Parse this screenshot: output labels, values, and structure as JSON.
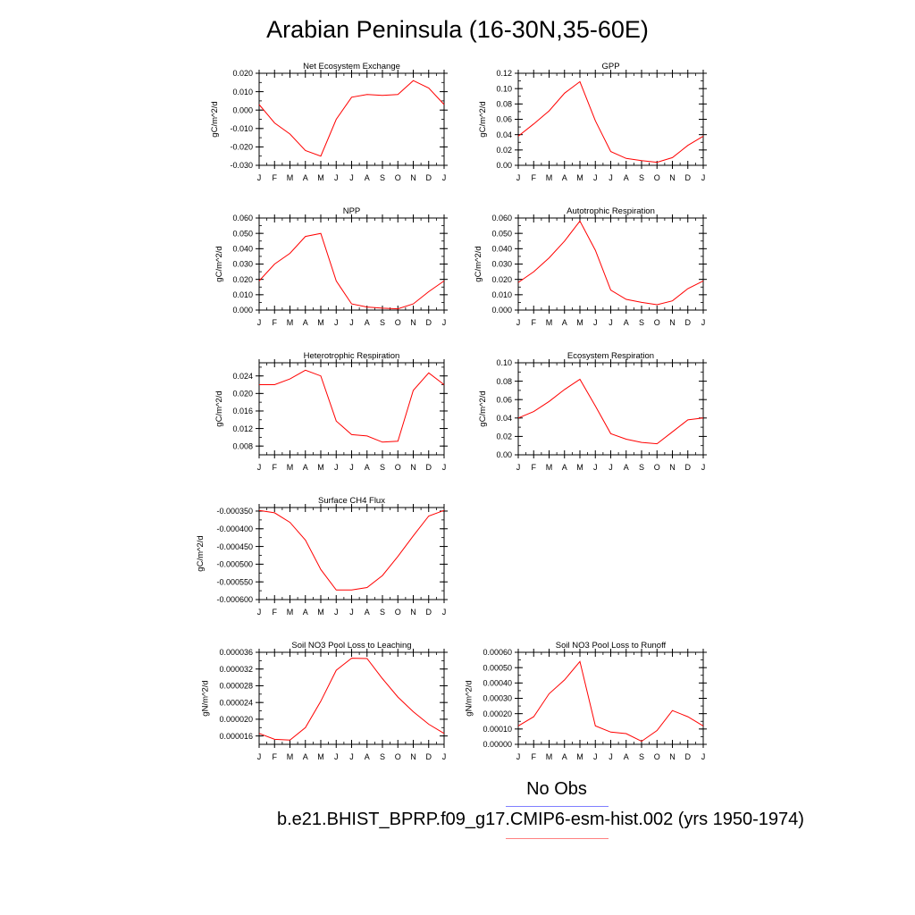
{
  "title": "Arabian Peninsula (16-30N,35-60E)",
  "months": [
    "J",
    "F",
    "M",
    "A",
    "M",
    "J",
    "J",
    "A",
    "S",
    "O",
    "N",
    "D",
    "J"
  ],
  "colors": {
    "model": "#ff0000",
    "obs": "#8080ff",
    "model_legend": "#ff8080"
  },
  "legend": {
    "obs_label": "No Obs",
    "model_label": "b.e21.BHIST_BPRP.f09_g17.CMIP6-esm-hist.002 (yrs 1950-1974)"
  },
  "chart_data": [
    {
      "type": "line",
      "title": "Net Ecosystem Exchange",
      "ylabel": "gC/m^2/d",
      "ylim": [
        -0.03,
        0.02
      ],
      "yticks": [
        -0.03,
        -0.02,
        -0.01,
        0.0,
        0.01,
        0.02
      ],
      "yticklabels": [
        "-0.030",
        "-0.020",
        "-0.010",
        "0.000",
        "0.010",
        "0.020"
      ],
      "values": [
        0.003,
        -0.007,
        -0.013,
        -0.022,
        -0.025,
        -0.005,
        0.007,
        0.0085,
        0.008,
        0.0085,
        0.016,
        0.012,
        0.003
      ]
    },
    {
      "type": "line",
      "title": "GPP",
      "ylabel": "gC/m^2/d",
      "ylim": [
        0.0,
        0.12
      ],
      "yticks": [
        0.0,
        0.02,
        0.04,
        0.06,
        0.08,
        0.1,
        0.12
      ],
      "yticklabels": [
        "0.00",
        "0.02",
        "0.04",
        "0.06",
        "0.08",
        "0.10",
        "0.12"
      ],
      "values": [
        0.038,
        0.054,
        0.071,
        0.094,
        0.109,
        0.058,
        0.018,
        0.009,
        0.006,
        0.004,
        0.01,
        0.026,
        0.038
      ]
    },
    {
      "type": "line",
      "title": "NPP",
      "ylabel": "gC/m^2/d",
      "ylim": [
        0.0,
        0.06
      ],
      "yticks": [
        0.0,
        0.01,
        0.02,
        0.03,
        0.04,
        0.05,
        0.06
      ],
      "yticklabels": [
        "0.000",
        "0.010",
        "0.020",
        "0.030",
        "0.040",
        "0.050",
        "0.060"
      ],
      "values": [
        0.019,
        0.03,
        0.037,
        0.048,
        0.05,
        0.019,
        0.004,
        0.002,
        0.0012,
        0.0008,
        0.004,
        0.012,
        0.019
      ]
    },
    {
      "type": "line",
      "title": "Autotrophic Respiration",
      "ylabel": "gC/m^2/d",
      "ylim": [
        0.0,
        0.06
      ],
      "yticks": [
        0.0,
        0.01,
        0.02,
        0.03,
        0.04,
        0.05,
        0.06
      ],
      "yticklabels": [
        "0.000",
        "0.010",
        "0.020",
        "0.030",
        "0.040",
        "0.050",
        "0.060"
      ],
      "values": [
        0.018,
        0.025,
        0.034,
        0.045,
        0.058,
        0.039,
        0.013,
        0.007,
        0.005,
        0.0035,
        0.006,
        0.014,
        0.019
      ]
    },
    {
      "type": "line",
      "title": "Heterotrophic Respiration",
      "ylabel": "gC/m^2/d",
      "ylim": [
        0.006,
        0.027
      ],
      "yticks": [
        0.008,
        0.012,
        0.016,
        0.02,
        0.024
      ],
      "yticklabels": [
        "0.008",
        "0.012",
        "0.016",
        "0.020",
        "0.024"
      ],
      "values": [
        0.022,
        0.022,
        0.0233,
        0.0253,
        0.024,
        0.0137,
        0.0106,
        0.0103,
        0.0089,
        0.0091,
        0.0207,
        0.0247,
        0.022
      ]
    },
    {
      "type": "line",
      "title": "Ecosystem Respiration",
      "ylabel": "gC/m^2/d",
      "ylim": [
        0.0,
        0.1
      ],
      "yticks": [
        0.0,
        0.02,
        0.04,
        0.06,
        0.08,
        0.1
      ],
      "yticklabels": [
        "0.00",
        "0.02",
        "0.04",
        "0.06",
        "0.08",
        "0.10"
      ],
      "values": [
        0.04,
        0.047,
        0.058,
        0.071,
        0.082,
        0.053,
        0.023,
        0.017,
        0.0135,
        0.012,
        0.025,
        0.038,
        0.04
      ]
    },
    {
      "type": "line",
      "title": "Surface CH4 Flux",
      "ylabel": "gC/m^2/d",
      "ylim": [
        -0.0006,
        -0.00034
      ],
      "yticks": [
        -0.0006,
        -0.00055,
        -0.0005,
        -0.00045,
        -0.0004,
        -0.00035
      ],
      "yticklabels": [
        "-0.000600",
        "-0.000550",
        "-0.000500",
        "-0.000450",
        "-0.000400",
        "-0.000350"
      ],
      "values": [
        -0.000348,
        -0.000355,
        -0.000382,
        -0.000432,
        -0.000515,
        -0.000573,
        -0.000573,
        -0.000566,
        -0.000532,
        -0.000478,
        -0.00042,
        -0.000364,
        -0.000348
      ]
    },
    {
      "type": "line",
      "title": "Soil NO3 Pool Loss to Leaching",
      "ylabel": "gN/m^2/d",
      "ylim": [
        1.4e-05,
        3.6e-05
      ],
      "yticks": [
        1.6e-05,
        2e-05,
        2.4e-05,
        2.8e-05,
        3.2e-05,
        3.6e-05
      ],
      "yticklabels": [
        "0.000016",
        "0.000020",
        "0.000024",
        "0.000028",
        "0.000032",
        "0.000036"
      ],
      "values": [
        1.66e-05,
        1.52e-05,
        1.5e-05,
        1.8e-05,
        2.43e-05,
        3.17e-05,
        3.46e-05,
        3.45e-05,
        2.97e-05,
        2.53e-05,
        2.18e-05,
        1.88e-05,
        1.66e-05
      ]
    },
    {
      "type": "line",
      "title": "Soil NO3 Pool Loss to Runoff",
      "ylabel": "gN/m^2/d",
      "ylim": [
        0.0,
        0.0006
      ],
      "yticks": [
        0.0,
        0.0001,
        0.0002,
        0.0003,
        0.0004,
        0.0005,
        0.0006
      ],
      "yticklabels": [
        "0.00000",
        "0.00010",
        "0.00020",
        "0.00030",
        "0.00040",
        "0.00050",
        "0.00060"
      ],
      "values": [
        0.00012,
        0.00018,
        0.00033,
        0.00042,
        0.00054,
        0.00012,
        8e-05,
        7e-05,
        2e-05,
        9e-05,
        0.00022,
        0.00018,
        0.00012
      ]
    }
  ]
}
